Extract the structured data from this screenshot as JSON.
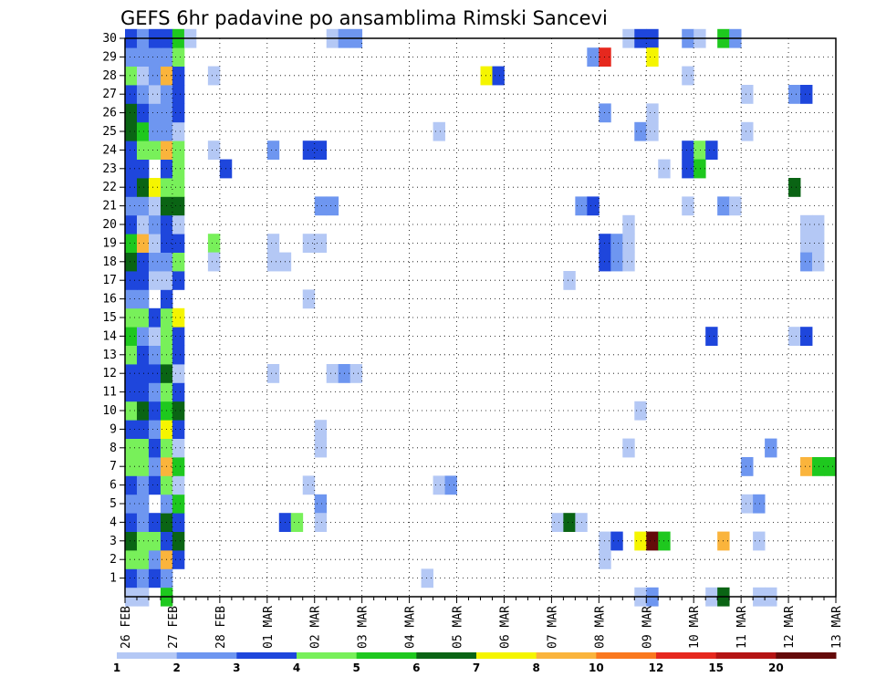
{
  "chart_data": {
    "type": "heatmap",
    "title": "GEFS 6hr padavine po ansamblima Rimski Sancevi",
    "x_tick_labels": [
      "26 FEB",
      "27 FEB",
      "28 FEB",
      "01 MAR",
      "02 MAR",
      "03 MAR",
      "04 MAR",
      "05 MAR",
      "06 MAR",
      "07 MAR",
      "08 MAR",
      "09 MAR",
      "10 MAR",
      "11 MAR",
      "12 MAR",
      "13 MAR"
    ],
    "y_tick_labels": [
      "1",
      "2",
      "3",
      "4",
      "5",
      "6",
      "7",
      "8",
      "9",
      "10",
      "11",
      "12",
      "13",
      "14",
      "15",
      "16",
      "17",
      "18",
      "19",
      "20",
      "21",
      "22",
      "23",
      "24",
      "25",
      "26",
      "27",
      "28",
      "29",
      "30"
    ],
    "x_range": [
      0,
      60
    ],
    "y_range": [
      0,
      30
    ],
    "grid": true,
    "legend": {
      "placement": "bottom",
      "labels": [
        "1",
        "2",
        "3",
        "4",
        "5",
        "6",
        "7",
        "8",
        "10",
        "12",
        "15",
        "20"
      ],
      "colors": [
        "#b4c8f5",
        "#6e96f0",
        "#1e46dc",
        "#78f05a",
        "#1ec81e",
        "#0a6414",
        "#f5f500",
        "#fab43c",
        "#fa781e",
        "#e6281e",
        "#b41414",
        "#640a0a"
      ]
    },
    "cells": [
      [
        0,
        0,
        "#b4c8f5"
      ],
      [
        1,
        0,
        "#b4c8f5"
      ],
      [
        3,
        0,
        "#1ec81e"
      ],
      [
        0,
        1,
        "#1e46dc"
      ],
      [
        1,
        1,
        "#6e96f0"
      ],
      [
        2,
        1,
        "#1e46dc"
      ],
      [
        3,
        1,
        "#6e96f0"
      ],
      [
        0,
        2,
        "#78f05a"
      ],
      [
        1,
        2,
        "#78f05a"
      ],
      [
        2,
        2,
        "#6e96f0"
      ],
      [
        3,
        2,
        "#fab43c"
      ],
      [
        4,
        2,
        "#1e46dc"
      ],
      [
        0,
        3,
        "#0a6414"
      ],
      [
        1,
        3,
        "#78f05a"
      ],
      [
        2,
        3,
        "#78f05a"
      ],
      [
        3,
        3,
        "#1e46dc"
      ],
      [
        4,
        3,
        "#0a6414"
      ],
      [
        0,
        4,
        "#1e46dc"
      ],
      [
        1,
        4,
        "#6e96f0"
      ],
      [
        2,
        4,
        "#1e46dc"
      ],
      [
        3,
        4,
        "#0a6414"
      ],
      [
        4,
        4,
        "#1e46dc"
      ],
      [
        0,
        5,
        "#6e96f0"
      ],
      [
        1,
        5,
        "#6e96f0"
      ],
      [
        3,
        5,
        "#6e96f0"
      ],
      [
        4,
        5,
        "#1ec81e"
      ],
      [
        0,
        6,
        "#1e46dc"
      ],
      [
        1,
        6,
        "#6e96f0"
      ],
      [
        2,
        6,
        "#1e46dc"
      ],
      [
        3,
        6,
        "#78f05a"
      ],
      [
        4,
        6,
        "#b4c8f5"
      ],
      [
        0,
        7,
        "#78f05a"
      ],
      [
        1,
        7,
        "#78f05a"
      ],
      [
        2,
        7,
        "#6e96f0"
      ],
      [
        3,
        7,
        "#fab43c"
      ],
      [
        4,
        7,
        "#1ec81e"
      ],
      [
        0,
        8,
        "#78f05a"
      ],
      [
        1,
        8,
        "#78f05a"
      ],
      [
        2,
        8,
        "#1e46dc"
      ],
      [
        3,
        8,
        "#78f05a"
      ],
      [
        4,
        8,
        "#b4c8f5"
      ],
      [
        0,
        9,
        "#1e46dc"
      ],
      [
        1,
        9,
        "#1e46dc"
      ],
      [
        2,
        9,
        "#6e96f0"
      ],
      [
        3,
        9,
        "#f5f500"
      ],
      [
        4,
        9,
        "#1e46dc"
      ],
      [
        0,
        10,
        "#78f05a"
      ],
      [
        1,
        10,
        "#0a6414"
      ],
      [
        2,
        10,
        "#1e46dc"
      ],
      [
        3,
        10,
        "#1ec81e"
      ],
      [
        4,
        10,
        "#0a6414"
      ],
      [
        0,
        11,
        "#1e46dc"
      ],
      [
        1,
        11,
        "#1e46dc"
      ],
      [
        2,
        11,
        "#6e96f0"
      ],
      [
        3,
        11,
        "#78f05a"
      ],
      [
        4,
        11,
        "#1e46dc"
      ],
      [
        0,
        12,
        "#1e46dc"
      ],
      [
        1,
        12,
        "#1e46dc"
      ],
      [
        2,
        12,
        "#1e46dc"
      ],
      [
        3,
        12,
        "#0a6414"
      ],
      [
        4,
        12,
        "#b4c8f5"
      ],
      [
        0,
        13,
        "#78f05a"
      ],
      [
        1,
        13,
        "#1e46dc"
      ],
      [
        2,
        13,
        "#6e96f0"
      ],
      [
        3,
        13,
        "#78f05a"
      ],
      [
        4,
        13,
        "#1e46dc"
      ],
      [
        0,
        14,
        "#1ec81e"
      ],
      [
        1,
        14,
        "#6e96f0"
      ],
      [
        2,
        14,
        "#b4c8f5"
      ],
      [
        3,
        14,
        "#78f05a"
      ],
      [
        4,
        14,
        "#1e46dc"
      ],
      [
        0,
        15,
        "#78f05a"
      ],
      [
        1,
        15,
        "#78f05a"
      ],
      [
        2,
        15,
        "#1e46dc"
      ],
      [
        3,
        15,
        "#78f05a"
      ],
      [
        4,
        15,
        "#f5f500"
      ],
      [
        0,
        16,
        "#6e96f0"
      ],
      [
        1,
        16,
        "#6e96f0"
      ],
      [
        3,
        16,
        "#1e46dc"
      ],
      [
        0,
        17,
        "#1e46dc"
      ],
      [
        1,
        17,
        "#1e46dc"
      ],
      [
        2,
        17,
        "#b4c8f5"
      ],
      [
        3,
        17,
        "#b4c8f5"
      ],
      [
        4,
        17,
        "#1e46dc"
      ],
      [
        0,
        18,
        "#0a6414"
      ],
      [
        1,
        18,
        "#1e46dc"
      ],
      [
        2,
        18,
        "#6e96f0"
      ],
      [
        3,
        18,
        "#6e96f0"
      ],
      [
        4,
        18,
        "#78f05a"
      ],
      [
        0,
        19,
        "#1ec81e"
      ],
      [
        1,
        19,
        "#fab43c"
      ],
      [
        2,
        19,
        "#b4c8f5"
      ],
      [
        3,
        19,
        "#1e46dc"
      ],
      [
        4,
        19,
        "#1e46dc"
      ],
      [
        0,
        20,
        "#1e46dc"
      ],
      [
        1,
        20,
        "#b4c8f5"
      ],
      [
        2,
        20,
        "#6e96f0"
      ],
      [
        3,
        20,
        "#1e46dc"
      ],
      [
        4,
        20,
        "#b4c8f5"
      ],
      [
        0,
        21,
        "#6e96f0"
      ],
      [
        1,
        21,
        "#6e96f0"
      ],
      [
        2,
        21,
        "#b4c8f5"
      ],
      [
        3,
        21,
        "#0a6414"
      ],
      [
        4,
        21,
        "#0a6414"
      ],
      [
        0,
        22,
        "#1e46dc"
      ],
      [
        1,
        22,
        "#0a6414"
      ],
      [
        2,
        22,
        "#f5f500"
      ],
      [
        3,
        22,
        "#78f05a"
      ],
      [
        4,
        22,
        "#78f05a"
      ],
      [
        0,
        23,
        "#1e46dc"
      ],
      [
        1,
        23,
        "#1e46dc"
      ],
      [
        3,
        23,
        "#1e46dc"
      ],
      [
        4,
        23,
        "#78f05a"
      ],
      [
        0,
        24,
        "#1e46dc"
      ],
      [
        1,
        24,
        "#78f05a"
      ],
      [
        2,
        24,
        "#78f05a"
      ],
      [
        3,
        24,
        "#fab43c"
      ],
      [
        4,
        24,
        "#78f05a"
      ],
      [
        0,
        25,
        "#0a6414"
      ],
      [
        1,
        25,
        "#1ec81e"
      ],
      [
        2,
        25,
        "#6e96f0"
      ],
      [
        3,
        25,
        "#6e96f0"
      ],
      [
        4,
        25,
        "#b4c8f5"
      ],
      [
        0,
        26,
        "#0a6414"
      ],
      [
        1,
        26,
        "#1e46dc"
      ],
      [
        2,
        26,
        "#6e96f0"
      ],
      [
        3,
        26,
        "#6e96f0"
      ],
      [
        4,
        26,
        "#1e46dc"
      ],
      [
        0,
        27,
        "#1e46dc"
      ],
      [
        1,
        27,
        "#6e96f0"
      ],
      [
        2,
        27,
        "#b4c8f5"
      ],
      [
        3,
        27,
        "#6e96f0"
      ],
      [
        4,
        27,
        "#1e46dc"
      ],
      [
        0,
        28,
        "#78f05a"
      ],
      [
        1,
        28,
        "#b4c8f5"
      ],
      [
        2,
        28,
        "#6e96f0"
      ],
      [
        3,
        28,
        "#fab43c"
      ],
      [
        4,
        28,
        "#1e46dc"
      ],
      [
        0,
        29,
        "#6e96f0"
      ],
      [
        1,
        29,
        "#6e96f0"
      ],
      [
        2,
        29,
        "#6e96f0"
      ],
      [
        3,
        29,
        "#6e96f0"
      ],
      [
        4,
        29,
        "#78f05a"
      ],
      [
        0,
        30,
        "#1e46dc"
      ],
      [
        1,
        30,
        "#6e96f0"
      ],
      [
        2,
        30,
        "#1e46dc"
      ],
      [
        3,
        30,
        "#1e46dc"
      ],
      [
        4,
        30,
        "#1ec81e"
      ],
      [
        5,
        30,
        "#b4c8f5"
      ],
      [
        7,
        28,
        "#b4c8f5"
      ],
      [
        7,
        24,
        "#b4c8f5"
      ],
      [
        8,
        23,
        "#1e46dc"
      ],
      [
        7,
        19,
        "#78f05a"
      ],
      [
        7,
        18,
        "#b4c8f5"
      ],
      [
        12,
        24,
        "#6e96f0"
      ],
      [
        12,
        19,
        "#b4c8f5"
      ],
      [
        12,
        18,
        "#b4c8f5"
      ],
      [
        13,
        18,
        "#b4c8f5"
      ],
      [
        12,
        12,
        "#b4c8f5"
      ],
      [
        13,
        4,
        "#1e46dc"
      ],
      [
        14,
        4,
        "#78f05a"
      ],
      [
        15,
        24,
        "#1e46dc"
      ],
      [
        16,
        24,
        "#1e46dc"
      ],
      [
        16,
        21,
        "#6e96f0"
      ],
      [
        17,
        21,
        "#6e96f0"
      ],
      [
        15,
        19,
        "#b4c8f5"
      ],
      [
        16,
        19,
        "#b4c8f5"
      ],
      [
        15,
        16,
        "#b4c8f5"
      ],
      [
        16,
        9,
        "#b4c8f5"
      ],
      [
        16,
        8,
        "#b4c8f5"
      ],
      [
        15,
        6,
        "#b4c8f5"
      ],
      [
        16,
        5,
        "#6e96f0"
      ],
      [
        16,
        4,
        "#b4c8f5"
      ],
      [
        17,
        30,
        "#b4c8f5"
      ],
      [
        18,
        30,
        "#6e96f0"
      ],
      [
        19,
        30,
        "#6e96f0"
      ],
      [
        17,
        12,
        "#b4c8f5"
      ],
      [
        18,
        12,
        "#6e96f0"
      ],
      [
        19,
        12,
        "#b4c8f5"
      ],
      [
        26,
        25,
        "#b4c8f5"
      ],
      [
        26,
        6,
        "#b4c8f5"
      ],
      [
        27,
        6,
        "#6e96f0"
      ],
      [
        25,
        1,
        "#b4c8f5"
      ],
      [
        30,
        28,
        "#f5f500"
      ],
      [
        31,
        28,
        "#1e46dc"
      ],
      [
        36,
        4,
        "#b4c8f5"
      ],
      [
        37,
        4,
        "#0a6414"
      ],
      [
        38,
        4,
        "#b4c8f5"
      ],
      [
        37,
        17,
        "#b4c8f5"
      ],
      [
        38,
        21,
        "#6e96f0"
      ],
      [
        39,
        21,
        "#1e46dc"
      ],
      [
        39,
        29,
        "#6e96f0"
      ],
      [
        40,
        29,
        "#e6281e"
      ],
      [
        40,
        26,
        "#6e96f0"
      ],
      [
        40,
        19,
        "#1e46dc"
      ],
      [
        41,
        19,
        "#6e96f0"
      ],
      [
        40,
        18,
        "#1e46dc"
      ],
      [
        41,
        18,
        "#6e96f0"
      ],
      [
        40,
        3,
        "#b4c8f5"
      ],
      [
        41,
        3,
        "#1e46dc"
      ],
      [
        40,
        2,
        "#b4c8f5"
      ],
      [
        42,
        30,
        "#b4c8f5"
      ],
      [
        43,
        30,
        "#1e46dc"
      ],
      [
        44,
        30,
        "#1e46dc"
      ],
      [
        44,
        29,
        "#f5f500"
      ],
      [
        44,
        26,
        "#b4c8f5"
      ],
      [
        43,
        25,
        "#6e96f0"
      ],
      [
        44,
        25,
        "#b4c8f5"
      ],
      [
        42,
        20,
        "#b4c8f5"
      ],
      [
        42,
        19,
        "#b4c8f5"
      ],
      [
        42,
        18,
        "#b4c8f5"
      ],
      [
        43,
        10,
        "#b4c8f5"
      ],
      [
        42,
        8,
        "#b4c8f5"
      ],
      [
        43,
        3,
        "#f5f500"
      ],
      [
        44,
        3,
        "#640a0a"
      ],
      [
        45,
        3,
        "#1ec81e"
      ],
      [
        45,
        23,
        "#b4c8f5"
      ],
      [
        47,
        30,
        "#6e96f0"
      ],
      [
        48,
        30,
        "#b4c8f5"
      ],
      [
        47,
        28,
        "#b4c8f5"
      ],
      [
        47,
        24,
        "#1e46dc"
      ],
      [
        48,
        24,
        "#78f05a"
      ],
      [
        47,
        23,
        "#1e46dc"
      ],
      [
        48,
        23,
        "#1ec81e"
      ],
      [
        47,
        21,
        "#b4c8f5"
      ],
      [
        49,
        24,
        "#1e46dc"
      ],
      [
        49,
        14,
        "#1e46dc"
      ],
      [
        50,
        30,
        "#1ec81e"
      ],
      [
        51,
        30,
        "#6e96f0"
      ],
      [
        50,
        21,
        "#6e96f0"
      ],
      [
        51,
        21,
        "#b4c8f5"
      ],
      [
        50,
        3,
        "#fab43c"
      ],
      [
        52,
        27,
        "#b4c8f5"
      ],
      [
        52,
        25,
        "#b4c8f5"
      ],
      [
        52,
        7,
        "#6e96f0"
      ],
      [
        52,
        5,
        "#b4c8f5"
      ],
      [
        53,
        5,
        "#6e96f0"
      ],
      [
        53,
        3,
        "#b4c8f5"
      ],
      [
        54,
        8,
        "#6e96f0"
      ],
      [
        56,
        22,
        "#0a6414"
      ],
      [
        56,
        27,
        "#6e96f0"
      ],
      [
        57,
        27,
        "#1e46dc"
      ],
      [
        56,
        14,
        "#b4c8f5"
      ],
      [
        57,
        14,
        "#1e46dc"
      ],
      [
        57,
        20,
        "#b4c8f5"
      ],
      [
        58,
        20,
        "#b4c8f5"
      ],
      [
        57,
        19,
        "#b4c8f5"
      ],
      [
        58,
        19,
        "#b4c8f5"
      ],
      [
        57,
        18,
        "#6e96f0"
      ],
      [
        58,
        18,
        "#b4c8f5"
      ],
      [
        57,
        7,
        "#fab43c"
      ],
      [
        58,
        7,
        "#1ec81e"
      ],
      [
        59,
        7,
        "#1ec81e"
      ],
      [
        43,
        0,
        "#b4c8f5"
      ],
      [
        44,
        0,
        "#6e96f0"
      ],
      [
        49,
        0,
        "#b4c8f5"
      ],
      [
        50,
        0,
        "#0a6414"
      ],
      [
        53,
        0,
        "#b4c8f5"
      ],
      [
        54,
        0,
        "#b4c8f5"
      ]
    ]
  }
}
